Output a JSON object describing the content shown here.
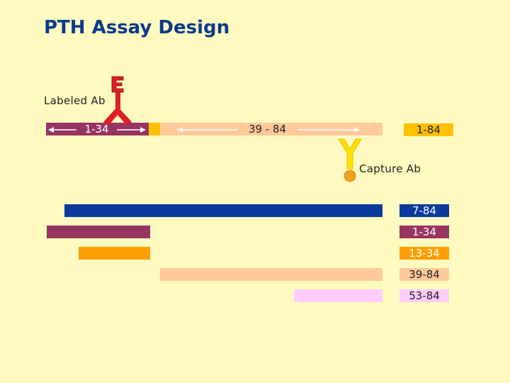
{
  "title": "PTH Assay Design",
  "labeled_ab": {
    "label": "Labeled Ab"
  },
  "capture_ab": {
    "label": "Capture Ab"
  },
  "full_molecule": {
    "n_terminal_label": "1-34",
    "mid_label": "39 - 84",
    "tag_label": "1-84"
  },
  "fragments": [
    {
      "label": "7-84",
      "color": "#0A3A9E",
      "text_color": "#FFFFFF"
    },
    {
      "label": "1-34",
      "color": "#963462",
      "text_color": "#FFFFFF"
    },
    {
      "label": "13-34",
      "color": "#FF9E00",
      "text_color": "#FFFFFF"
    },
    {
      "label": "39-84",
      "color": "#FFC99A",
      "text_color": "#222222"
    },
    {
      "label": "53-84",
      "color": "#FFCCFF",
      "text_color": "#222222"
    }
  ],
  "colors": {
    "background": "#FFFBC0",
    "title": "#0B3A8C",
    "n_terminal": "#963462",
    "gold_band": "#FFC000",
    "mid_region": "#FFC99A",
    "labeled_ab": "#E02020",
    "capture_ab": "#FFE000",
    "capture_bead": "#F0A020"
  },
  "icons": {
    "labeled_ab": "labeled-antibody-icon",
    "capture_ab": "capture-antibody-icon"
  }
}
